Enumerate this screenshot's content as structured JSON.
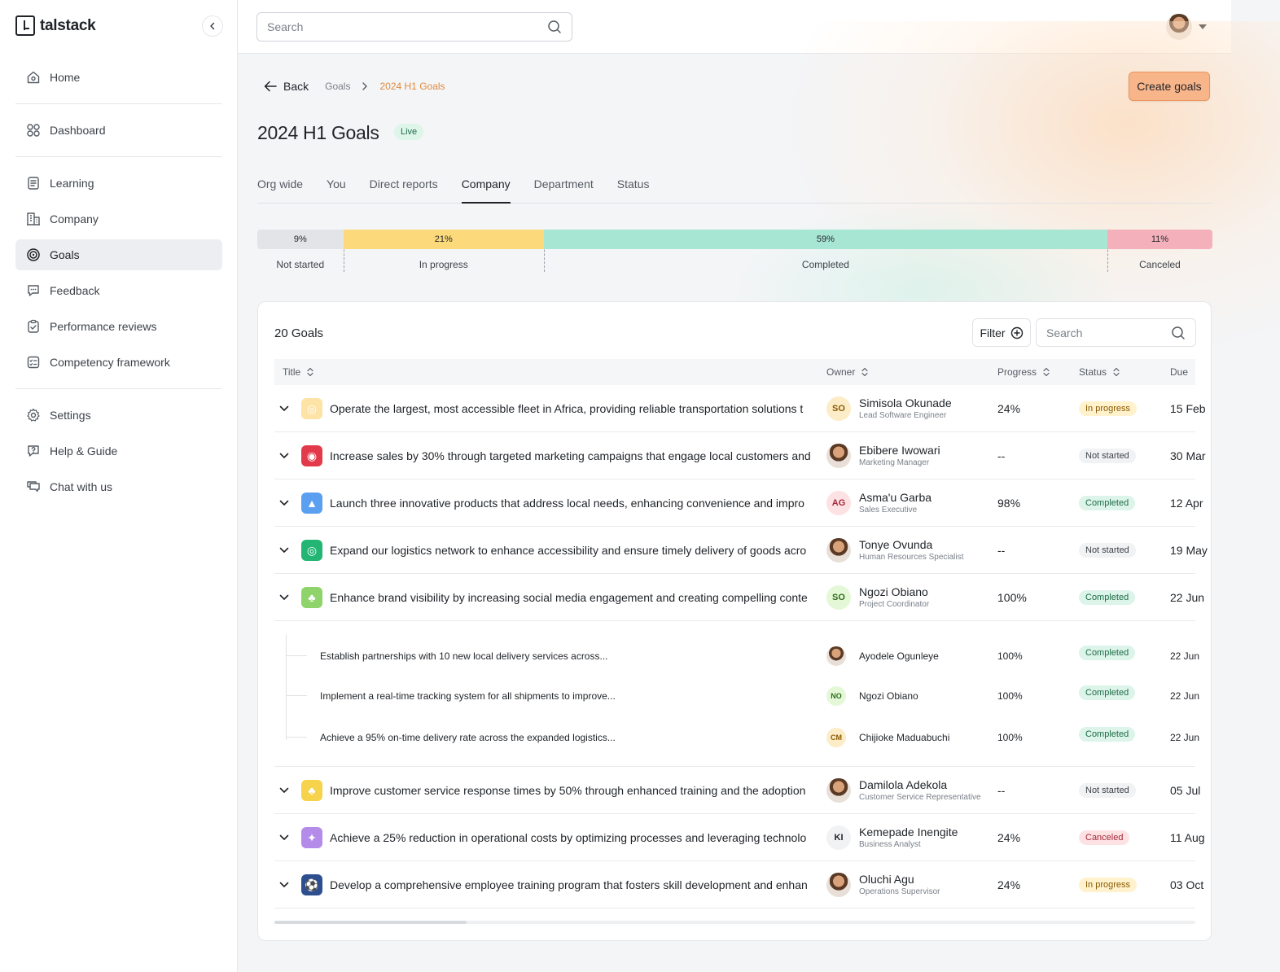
{
  "app": {
    "name": "talstack"
  },
  "sidebar": {
    "items": [
      {
        "label": "Home",
        "icon": "home-icon"
      },
      {
        "label": "Dashboard",
        "icon": "grid-icon"
      },
      {
        "label": "Learning",
        "icon": "book-icon"
      },
      {
        "label": "Company",
        "icon": "building-icon"
      },
      {
        "label": "Goals",
        "icon": "target-icon",
        "active": true
      },
      {
        "label": "Feedback",
        "icon": "chat-icon"
      },
      {
        "label": "Performance reviews",
        "icon": "clipboard-icon"
      },
      {
        "label": "Competency framework",
        "icon": "checklist-icon"
      },
      {
        "label": "Settings",
        "icon": "gear-icon"
      },
      {
        "label": "Help & Guide",
        "icon": "help-icon"
      },
      {
        "label": "Chat with us",
        "icon": "support-icon"
      }
    ]
  },
  "header": {
    "search_placeholder": "Search"
  },
  "breadcrumb": {
    "back": "Back",
    "parent": "Goals",
    "current": "2024 H1 Goals"
  },
  "page": {
    "title": "2024 H1 Goals",
    "badge": "Live",
    "create_button": "Create goals"
  },
  "tabs": [
    "Org wide",
    "You",
    "Direct reports",
    "Company",
    "Department",
    "Status"
  ],
  "active_tab": "Company",
  "status_summary": [
    {
      "label": "Not started",
      "percent": 9,
      "display": "9%",
      "color": "#e3e4e8"
    },
    {
      "label": "In progress",
      "percent": 21,
      "display": "21%",
      "color": "#fcd97a"
    },
    {
      "label": "Completed",
      "percent": 59,
      "display": "59%",
      "color": "#a8e6d4"
    },
    {
      "label": "Canceled",
      "percent": 11,
      "display": "11%",
      "color": "#f5b1bb"
    }
  ],
  "goals_card": {
    "title": "20 Goals",
    "filter_label": "Filter",
    "search_placeholder": "Search",
    "columns": [
      "Title",
      "Owner",
      "Progress",
      "Status",
      "Due"
    ]
  },
  "goals": [
    {
      "title": "Operate the largest, most accessible fleet in Africa, providing reliable transportation solutions t",
      "icon": "dart-icon",
      "icon_bg": "#fde3a6",
      "icon_glyph": "◎",
      "owner": "Simisola Okunade",
      "role": "Lead Software Engineer",
      "initials": "SO",
      "avatar_bg": "#fdecc8",
      "avatar_fg": "#8a5a00",
      "progress": "24%",
      "status": "In progress",
      "status_key": "in-progress",
      "due": "15 Feb"
    },
    {
      "title": "Increase sales by 30% through targeted marketing campaigns that engage local customers and",
      "icon": "bullseye-icon",
      "icon_bg": "#e23a4a",
      "icon_glyph": "◉",
      "owner": "Ebibere Iwowari",
      "role": "Marketing Manager",
      "initials": "",
      "avatar_bg": "photo",
      "avatar_fg": "",
      "progress": "--",
      "status": "Not started",
      "status_key": "not-started",
      "due": "30 Mar"
    },
    {
      "title": "Launch three innovative products that address local needs, enhancing convenience and impro",
      "icon": "graduation-icon",
      "icon_bg": "#5b9ff0",
      "icon_glyph": "▲",
      "owner": "Asma'u Garba",
      "role": "Sales Executive",
      "initials": "AG",
      "avatar_bg": "#fde2e4",
      "avatar_fg": "#a3283a",
      "progress": "98%",
      "status": "Completed",
      "status_key": "completed",
      "due": "12 Apr"
    },
    {
      "title": "Expand our logistics network to enhance accessibility and ensure timely delivery of goods acro",
      "icon": "compass-icon",
      "icon_bg": "#22b573",
      "icon_glyph": "◎",
      "owner": "Tonye Ovunda",
      "role": "Human Resources Specialist",
      "initials": "",
      "avatar_bg": "photo",
      "avatar_fg": "",
      "progress": "--",
      "status": "Not started",
      "status_key": "not-started",
      "due": "19 May"
    },
    {
      "title": "Enhance brand visibility by increasing social media engagement and creating compelling conte",
      "icon": "sprout-icon",
      "icon_bg": "#8fd36b",
      "icon_glyph": "♣",
      "owner": "Ngozi Obiano",
      "role": "Project Coordinator",
      "initials": "SO",
      "avatar_bg": "#e4f8d8",
      "avatar_fg": "#2e6b1a",
      "progress": "100%",
      "status": "Completed",
      "status_key": "completed",
      "due": "22 Jun"
    }
  ],
  "sub_goals": [
    {
      "title": "Establish partnerships with 10 new local delivery services across...",
      "owner": "Ayodele Ogunleye",
      "initials": "",
      "avatar_bg": "photo",
      "avatar_fg": "",
      "progress": "100%",
      "status": "Completed",
      "status_key": "completed",
      "due": "22 Jun"
    },
    {
      "title": "Implement a real-time tracking system for all shipments to improve...",
      "owner": "Ngozi Obiano",
      "initials": "NO",
      "avatar_bg": "#e4f8d8",
      "avatar_fg": "#2e6b1a",
      "progress": "100%",
      "status": "Completed",
      "status_key": "completed",
      "due": "22 Jun"
    },
    {
      "title": "Achieve a 95% on-time delivery rate across the expanded logistics...",
      "owner": "Chijioke Maduabuchi",
      "initials": "CM",
      "avatar_bg": "#fdecc8",
      "avatar_fg": "#8a5a00",
      "progress": "100%",
      "status": "Completed",
      "status_key": "completed",
      "due": "22 Jun"
    }
  ],
  "goals_after": [
    {
      "title": "Improve customer service response times by 50% through enhanced training and the adoption",
      "icon": "plant-icon",
      "icon_bg": "#f6d34a",
      "icon_glyph": "♣",
      "owner": "Damilola Adekola",
      "role": "Customer Service Representative",
      "initials": "",
      "avatar_bg": "photo",
      "avatar_fg": "",
      "progress": "--",
      "status": "Not started",
      "status_key": "not-started",
      "due": "05 Jul"
    },
    {
      "title": "Achieve a 25% reduction in operational costs by optimizing processes and leveraging technolo",
      "icon": "sparkle-icon",
      "icon_bg": "#b48be8",
      "icon_glyph": "✦",
      "owner": "Kemepade Inengite",
      "role": "Business Analyst",
      "initials": "KI",
      "avatar_bg": "#f1f2f4",
      "avatar_fg": "#1f2328",
      "progress": "24%",
      "status": "Canceled",
      "status_key": "canceled",
      "due": "11 Aug"
    },
    {
      "title": "Develop a comprehensive employee training program that fosters skill development and enhan",
      "icon": "soccer-icon",
      "icon_bg": "#2d4f8f",
      "icon_glyph": "⚽",
      "owner": "Oluchi Agu",
      "role": "Operations Supervisor",
      "initials": "",
      "avatar_bg": "photo",
      "avatar_fg": "",
      "progress": "24%",
      "status": "In progress",
      "status_key": "in-progress",
      "due": "03 Oct"
    }
  ]
}
